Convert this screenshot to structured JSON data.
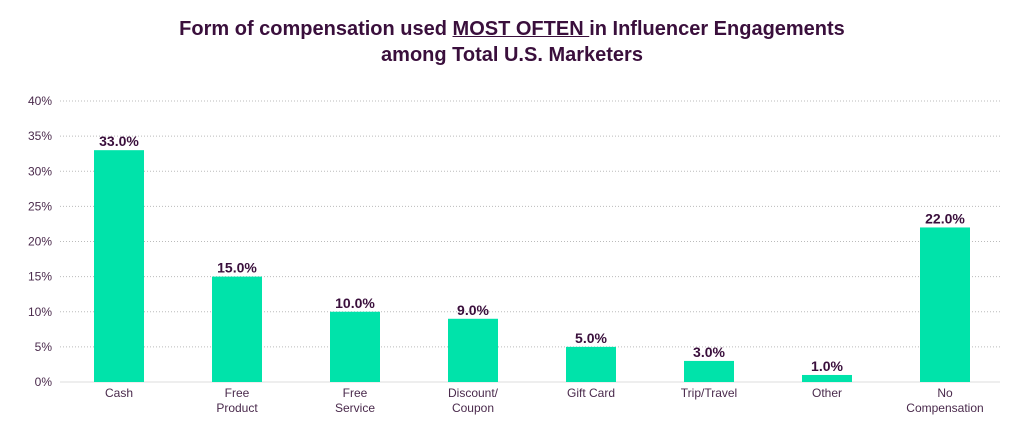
{
  "chart_data": {
    "type": "bar",
    "title": {
      "line1_before": "Form of compensation used ",
      "line1_emphasis": "MOST OFTEN ",
      "line1_after": "in Influencer Engagements",
      "line2": "among Total U.S. Marketers"
    },
    "categories": [
      [
        "Cash"
      ],
      [
        "Free",
        "Product"
      ],
      [
        "Free",
        "Service"
      ],
      [
        "Discount/",
        "Coupon"
      ],
      [
        "Gift Card"
      ],
      [
        "Trip/Travel"
      ],
      [
        "Other"
      ],
      [
        "No",
        "Compensation"
      ]
    ],
    "values": [
      33.0,
      15.0,
      10.0,
      9.0,
      5.0,
      3.0,
      1.0,
      22.0
    ],
    "data_labels": [
      "33.0%",
      "15.0%",
      "10.0%",
      "9.0%",
      "5.0%",
      "3.0%",
      "1.0%",
      "22.0%"
    ],
    "yticks": [
      "0%",
      "5%",
      "10%",
      "15%",
      "20%",
      "25%",
      "30%",
      "35%",
      "40%"
    ],
    "ylim": [
      0,
      40
    ],
    "grid": "horizontal dotted",
    "legend": "none",
    "xlabel": "",
    "ylabel": "",
    "colors": {
      "bar": "#00E3AA",
      "text": "#3A0F3C",
      "grid": "#BBBBBB"
    }
  }
}
